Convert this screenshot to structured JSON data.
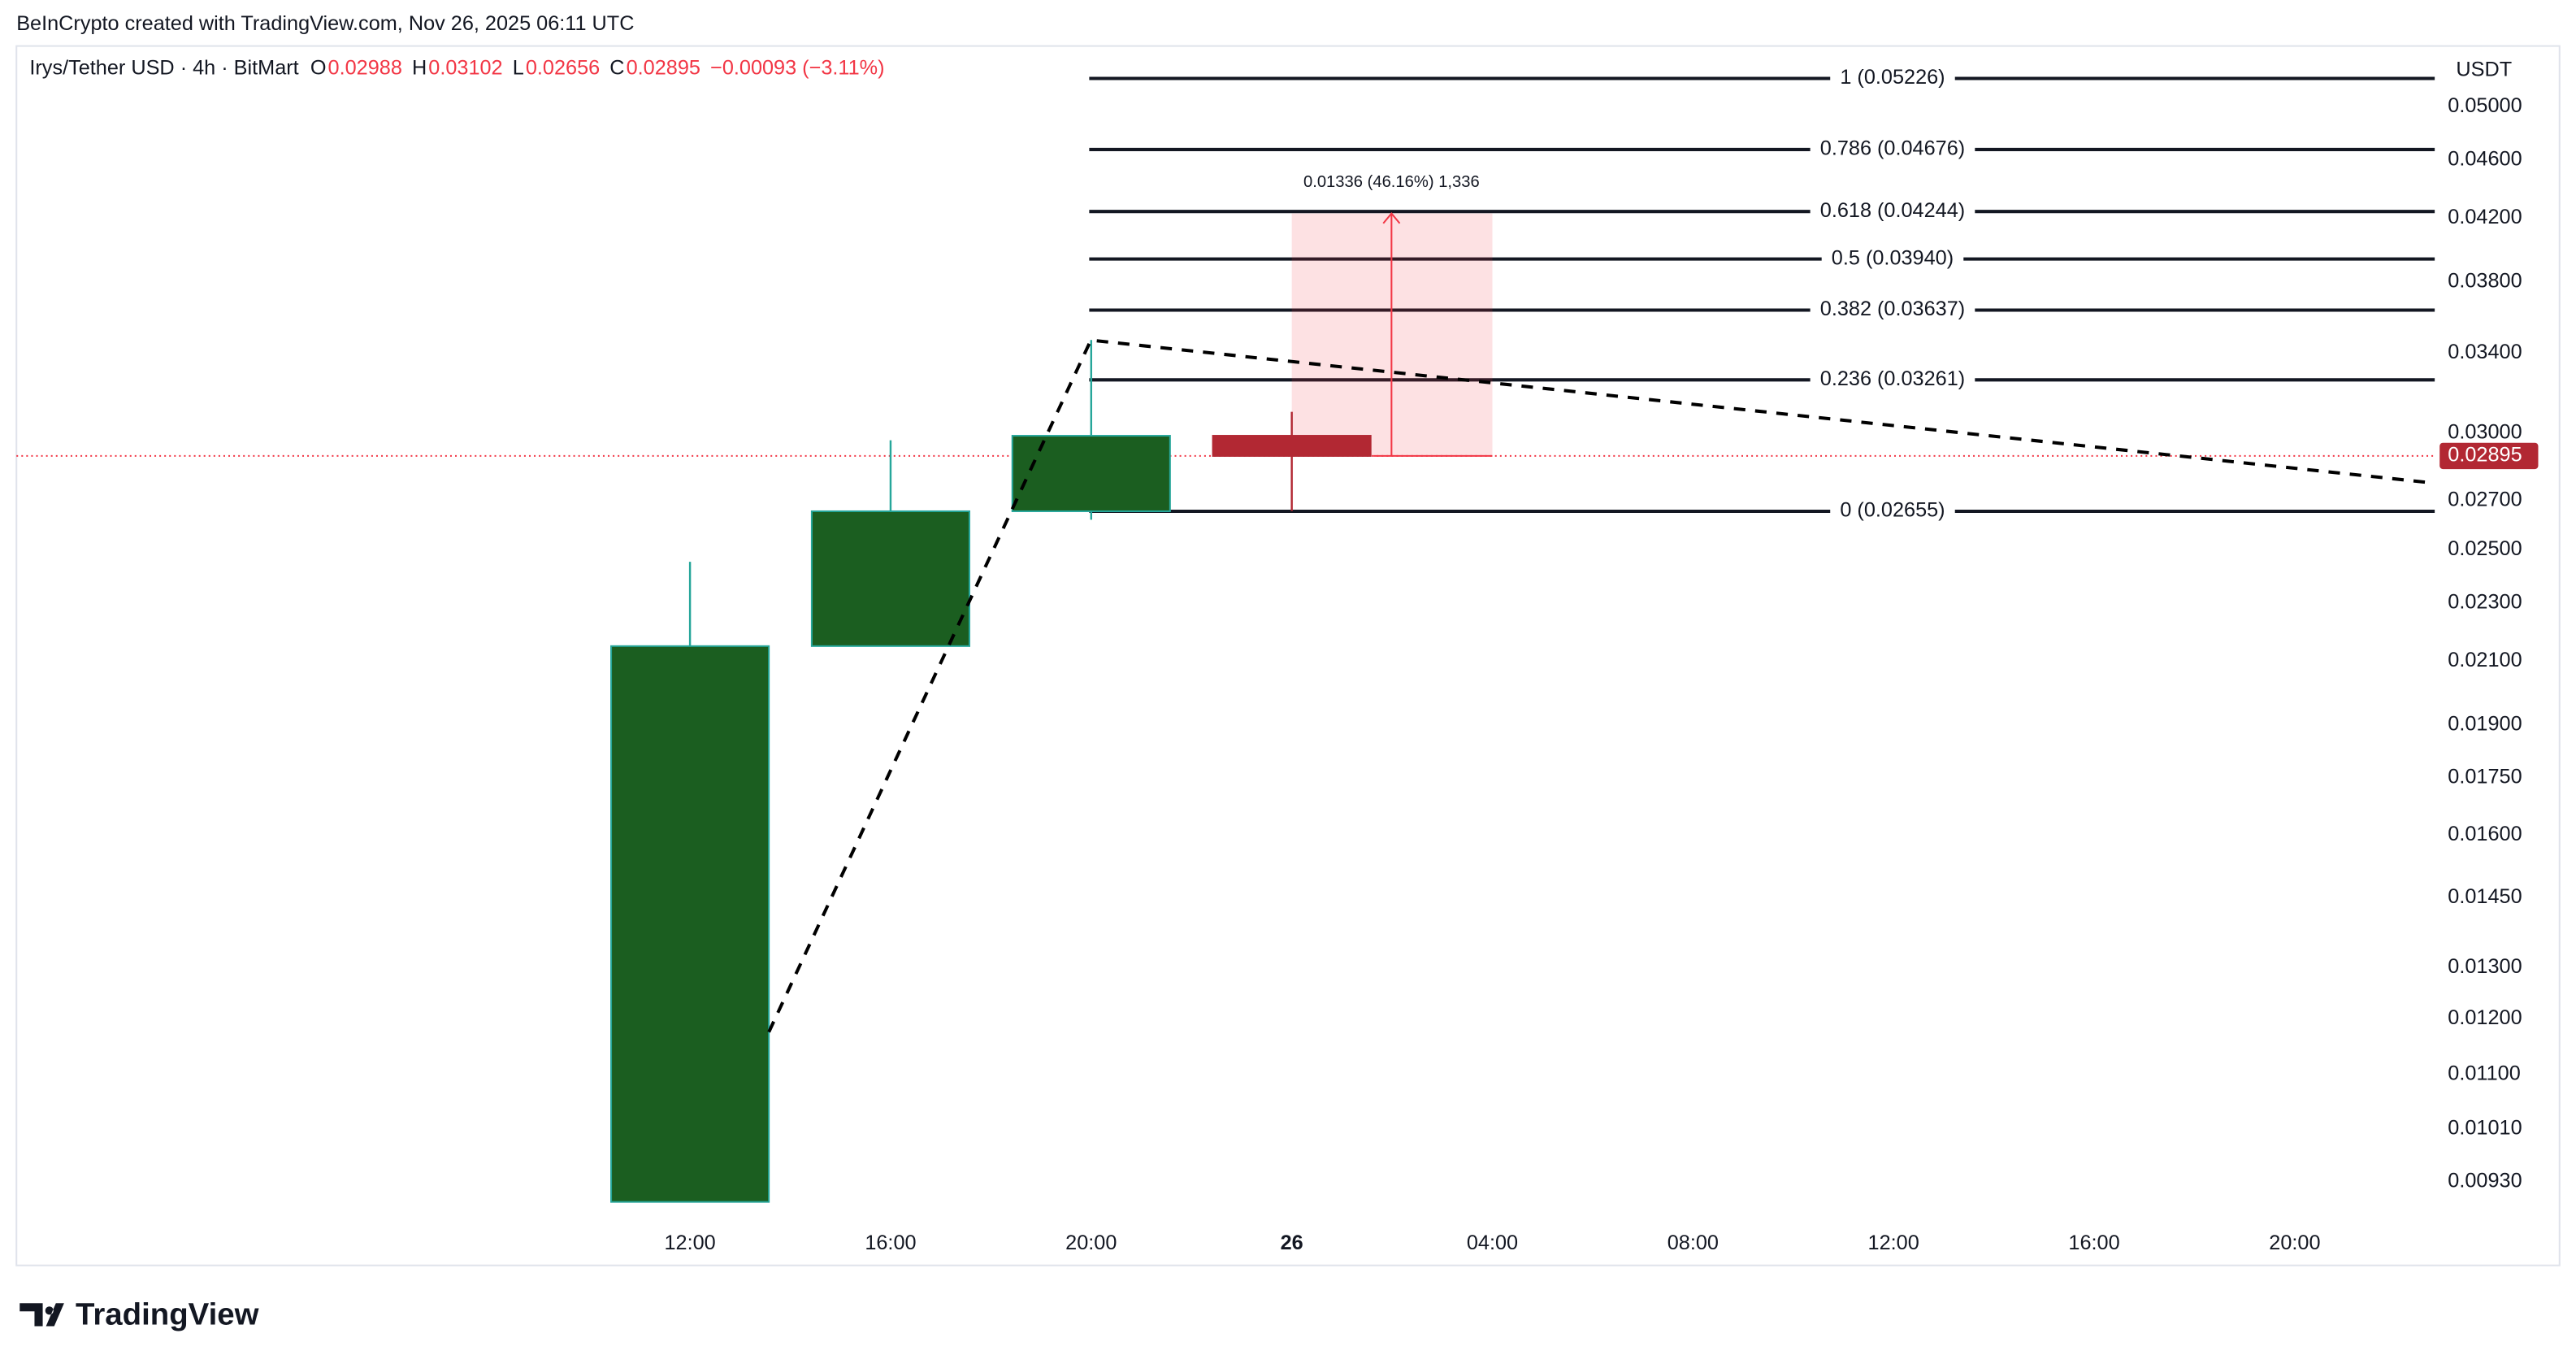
{
  "chart_data": {
    "type": "candlestick",
    "credit": "BeInCrypto created with TradingView.com, Nov 26, 2025 06:11 UTC",
    "header": {
      "symbol": "Irys/Tether USD · 4h · BitMart",
      "o_label": "O",
      "open": 0.02988,
      "h_label": "H",
      "high": 0.03102,
      "l_label": "L",
      "low": 0.02656,
      "c_label": "C",
      "close": 0.02895,
      "change": "−0.00093 (−3.11%)"
    },
    "currency": "USDT",
    "categories": [
      "12:00",
      "16:00",
      "20:00",
      "26",
      "04:00",
      "08:00",
      "12:00",
      "16:00",
      "20:00"
    ],
    "open": [
      0.00901,
      0.0215,
      0.02655,
      0.02988,
      null,
      null,
      null,
      null,
      null
    ],
    "high": [
      0.02453,
      0.02967,
      0.03471,
      0.03102,
      null,
      null,
      null,
      null,
      null
    ],
    "low": [
      0.00901,
      0.0215,
      0.0262,
      0.02656,
      null,
      null,
      null,
      null,
      null
    ],
    "close": [
      0.0215,
      0.02655,
      0.02988,
      0.02895,
      null,
      null,
      null,
      null,
      null
    ],
    "up_color": "#1b5e20",
    "up_border": "#26a69a",
    "down_color": "#b22833",
    "log_scale": true,
    "ylim": [
      0.0087,
      0.0547
    ],
    "yticks": [
      {
        "value": 0.05,
        "label": "0.05000"
      },
      {
        "value": 0.046,
        "label": "0.04600"
      },
      {
        "value": 0.042,
        "label": "0.04200"
      },
      {
        "value": 0.038,
        "label": "0.03800"
      },
      {
        "value": 0.034,
        "label": "0.03400"
      },
      {
        "value": 0.03,
        "label": "0.03000"
      },
      {
        "value": 0.027,
        "label": "0.02700"
      },
      {
        "value": 0.025,
        "label": "0.02500"
      },
      {
        "value": 0.023,
        "label": "0.02300"
      },
      {
        "value": 0.021,
        "label": "0.02100"
      },
      {
        "value": 0.019,
        "label": "0.01900"
      },
      {
        "value": 0.0175,
        "label": "0.01750"
      },
      {
        "value": 0.016,
        "label": "0.01600"
      },
      {
        "value": 0.0145,
        "label": "0.01450"
      },
      {
        "value": 0.013,
        "label": "0.01300"
      },
      {
        "value": 0.012,
        "label": "0.01200"
      },
      {
        "value": 0.011,
        "label": "0.01100"
      },
      {
        "value": 0.0101,
        "label": "0.01010"
      },
      {
        "value": 0.0093,
        "label": "0.00930"
      }
    ],
    "fib_levels": [
      {
        "label": "1 (0.05226)",
        "price": 0.05226
      },
      {
        "label": "0.786 (0.04676)",
        "price": 0.04676
      },
      {
        "label": "0.618 (0.04244)",
        "price": 0.04244
      },
      {
        "label": "0.5 (0.03940)",
        "price": 0.0394
      },
      {
        "label": "0.382 (0.03637)",
        "price": 0.03637
      },
      {
        "label": "0.236 (0.03261)",
        "price": 0.03261
      },
      {
        "label": "0 (0.02655)",
        "price": 0.02655
      }
    ],
    "measure": {
      "label": "0.01336 (46.16%) 1,336",
      "from": 0.02895,
      "to": 0.04231
    },
    "brand": "TradingView"
  }
}
